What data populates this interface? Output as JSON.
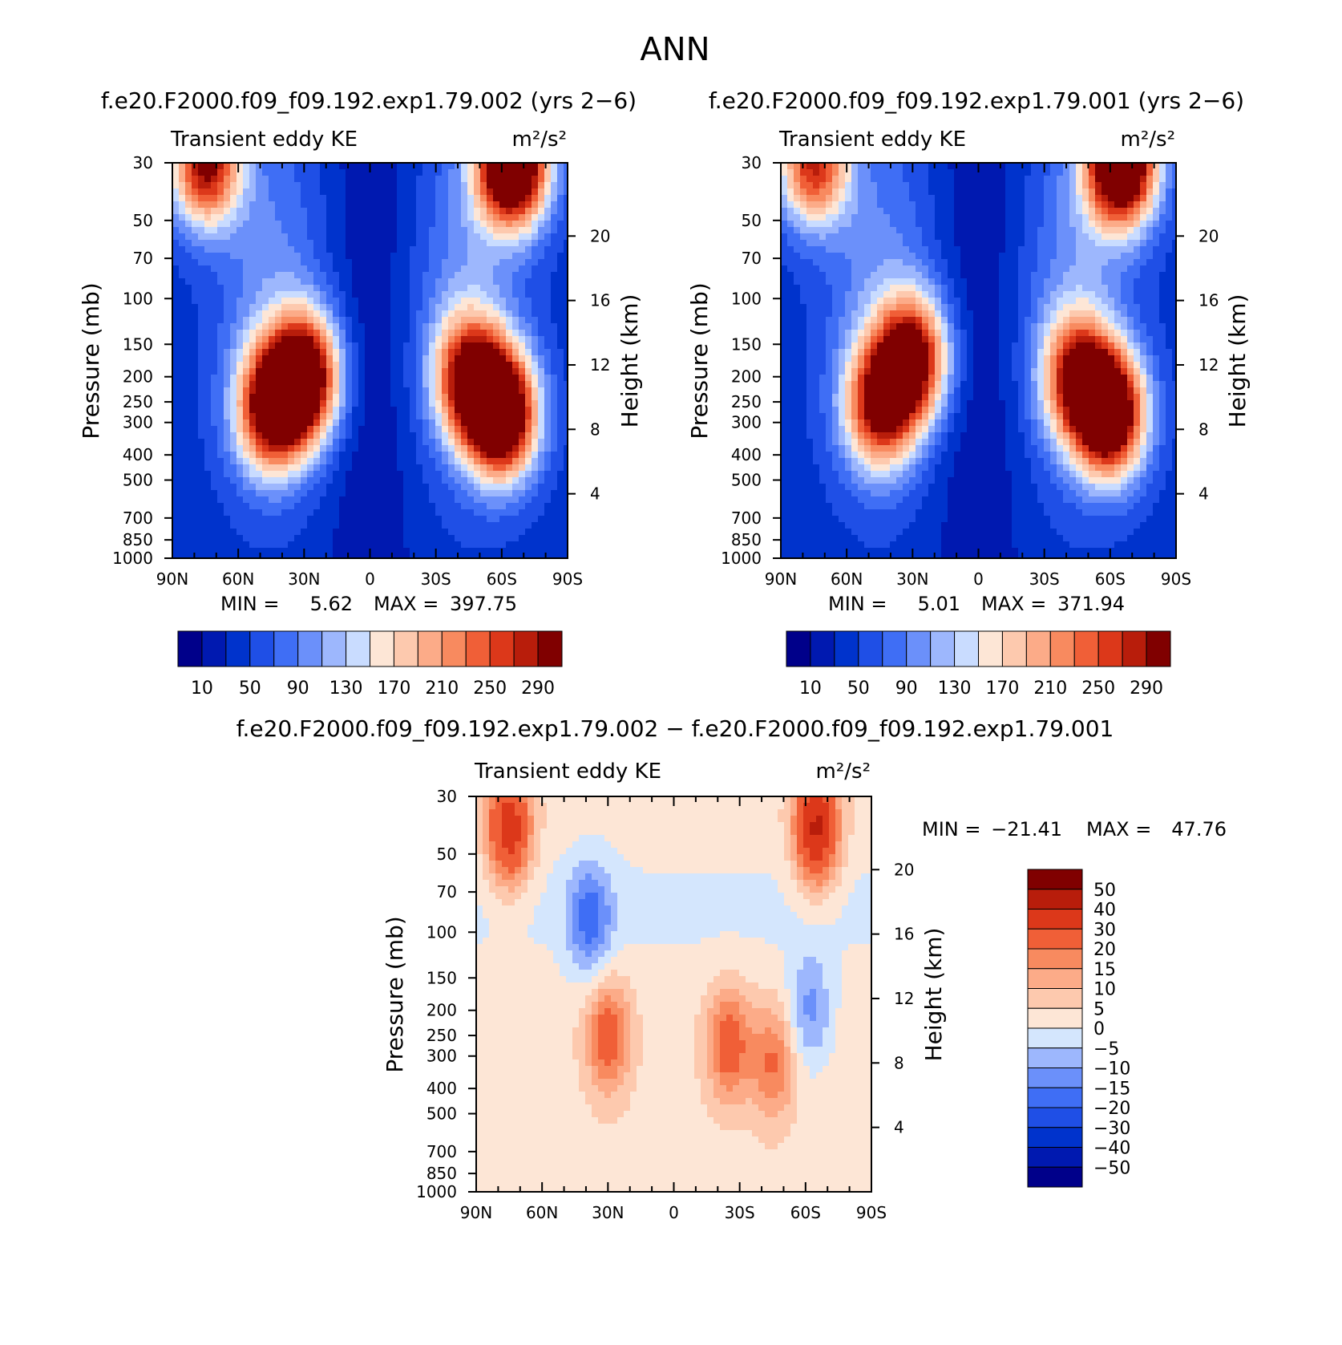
{
  "figure": {
    "title": "ANN"
  },
  "colors": {
    "ke_levels": [
      "#00008a",
      "#0019b0",
      "#0033cc",
      "#1f4fe6",
      "#3f6ef5",
      "#6b90fa",
      "#9db7fd",
      "#c9dcff",
      "#fde6d6",
      "#fdc9ae",
      "#fcab88",
      "#f88a5f",
      "#f05f37",
      "#dc381a",
      "#b81d0b",
      "#800000"
    ],
    "diff_levels": [
      "#00008a",
      "#0019b0",
      "#0033cc",
      "#1f4fe6",
      "#3f6ef5",
      "#6b90fa",
      "#9db7fd",
      "#d4e6fd",
      "#fde6d6",
      "#fdc9ae",
      "#fcab88",
      "#f88a5f",
      "#f05f37",
      "#dc381a",
      "#b81d0b",
      "#800000"
    ]
  },
  "chart_data": [
    {
      "type": "heatmap",
      "title": "f.e20.F2000.f09_f09.192.exp1.79.002 (yrs 2−6)",
      "left_label": "Transient eddy KE",
      "units": "m²/s²",
      "ylabel": "Pressure (mb)",
      "ylabel_right": "Height (km)",
      "xticks": [
        "90N",
        "60N",
        "30N",
        "0",
        "30S",
        "60S",
        "90S"
      ],
      "yticks": [
        "30",
        "50",
        "70",
        "100",
        "150",
        "200",
        "250",
        "300",
        "400",
        "500",
        "700",
        "850",
        "1000"
      ],
      "height_ticks": [
        "20",
        "16",
        "12",
        "8",
        "4"
      ],
      "ylim": [
        1000,
        30
      ],
      "min_label": "MIN =",
      "min_value": "5.62",
      "max_label": "MAX =",
      "max_value": "397.75",
      "colorbar_labels": [
        "10",
        "50",
        "90",
        "130",
        "170",
        "210",
        "250",
        "290"
      ],
      "features": [
        {
          "lat": 30,
          "p": 200,
          "amp": 300
        },
        {
          "lat": 45,
          "p": 270,
          "amp": 250
        },
        {
          "lat": -60,
          "p": 280,
          "amp": 340
        },
        {
          "lat": -45,
          "p": 200,
          "amp": 220
        },
        {
          "lat": -65,
          "p": 30,
          "amp": 380
        },
        {
          "lat": 75,
          "p": 30,
          "amp": 260
        }
      ]
    },
    {
      "type": "heatmap",
      "title": "f.e20.F2000.f09_f09.192.exp1.79.001 (yrs 2−6)",
      "left_label": "Transient eddy KE",
      "units": "m²/s²",
      "ylabel": "Pressure (mb)",
      "ylabel_right": "Height (km)",
      "xticks": [
        "90N",
        "60N",
        "30N",
        "0",
        "30S",
        "60S",
        "90S"
      ],
      "yticks": [
        "30",
        "50",
        "70",
        "100",
        "150",
        "200",
        "250",
        "300",
        "400",
        "500",
        "700",
        "850",
        "1000"
      ],
      "height_ticks": [
        "20",
        "16",
        "12",
        "8",
        "4"
      ],
      "ylim": [
        1000,
        30
      ],
      "min_label": "MIN =",
      "min_value": "5.01",
      "max_label": "MAX =",
      "max_value": "371.94",
      "colorbar_labels": [
        "10",
        "50",
        "90",
        "130",
        "170",
        "210",
        "250",
        "290"
      ],
      "features": [
        {
          "lat": 30,
          "p": 170,
          "amp": 260
        },
        {
          "lat": 45,
          "p": 260,
          "amp": 230
        },
        {
          "lat": -60,
          "p": 280,
          "amp": 320
        },
        {
          "lat": -45,
          "p": 200,
          "amp": 210
        },
        {
          "lat": -65,
          "p": 30,
          "amp": 370
        },
        {
          "lat": 75,
          "p": 30,
          "amp": 230
        }
      ]
    },
    {
      "type": "heatmap",
      "title": "f.e20.F2000.f09_f09.192.exp1.79.002 − f.e20.F2000.f09_f09.192.exp1.79.001",
      "left_label": "Transient eddy KE",
      "units": "m²/s²",
      "ylabel": "Pressure (mb)",
      "ylabel_right": "Height (km)",
      "xticks": [
        "90N",
        "60N",
        "30N",
        "0",
        "30S",
        "60S",
        "90S"
      ],
      "yticks": [
        "30",
        "50",
        "70",
        "100",
        "150",
        "200",
        "250",
        "300",
        "400",
        "500",
        "700",
        "850",
        "1000"
      ],
      "height_ticks": [
        "20",
        "16",
        "12",
        "8",
        "4"
      ],
      "ylim": [
        1000,
        30
      ],
      "min_label": "MIN =",
      "min_value": "−21.41",
      "max_label": "MAX =",
      "max_value": "47.76",
      "colorbar_labels": [
        "50",
        "40",
        "30",
        "20",
        "15",
        "10",
        "5",
        "0",
        "−5",
        "−10",
        "−15",
        "−20",
        "−30",
        "−40",
        "−50"
      ],
      "features": [
        {
          "lat": 75,
          "p": 40,
          "amp": 35
        },
        {
          "lat": -65,
          "p": 40,
          "amp": 40
        },
        {
          "lat": 30,
          "p": 250,
          "amp": 22
        },
        {
          "lat": -25,
          "p": 270,
          "amp": 22
        },
        {
          "lat": -45,
          "p": 320,
          "amp": 18
        },
        {
          "lat": 38,
          "p": 90,
          "amp": -18
        },
        {
          "lat": -62,
          "p": 200,
          "amp": -14
        }
      ]
    }
  ]
}
